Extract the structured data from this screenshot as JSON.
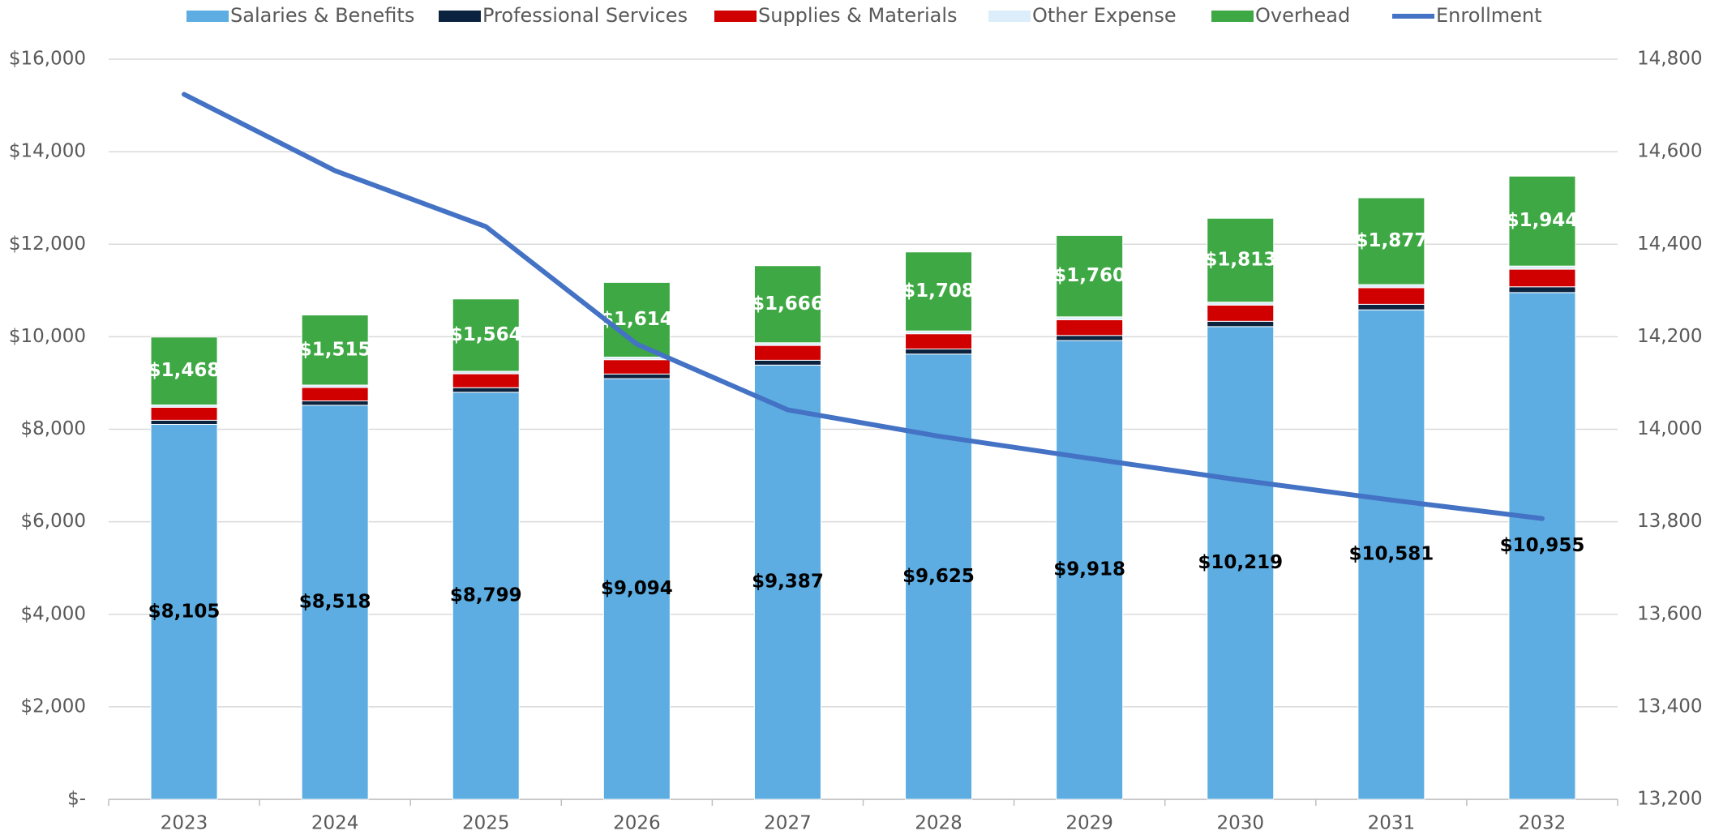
{
  "chart_data": {
    "type": "bar",
    "stacked": true,
    "categories": [
      "2023",
      "2024",
      "2025",
      "2026",
      "2027",
      "2028",
      "2029",
      "2030",
      "2031",
      "2032"
    ],
    "series": [
      {
        "name": "Salaries & Benefits",
        "color": "#5dade2",
        "values": [
          8105,
          8518,
          8799,
          9094,
          9387,
          9625,
          9918,
          10219,
          10581,
          10955
        ],
        "value_labels": [
          "$8,105",
          "$8,518",
          "$8,799",
          "$9,094",
          "$9,387",
          "$9,625",
          "$9,918",
          "$10,219",
          "$10,581",
          "$10,955"
        ],
        "label_color": "#000000"
      },
      {
        "name": "Professional Services",
        "color": "#0c2340",
        "values": [
          90,
          95,
          100,
          100,
          105,
          110,
          110,
          115,
          120,
          125
        ]
      },
      {
        "name": "Supplies & Materials",
        "color": "#d00000",
        "values": [
          280,
          290,
          300,
          310,
          320,
          330,
          340,
          350,
          360,
          380
        ]
      },
      {
        "name": "Other Expense",
        "color": "#dbeefa",
        "values": [
          50,
          52,
          54,
          56,
          58,
          60,
          62,
          64,
          66,
          68
        ]
      },
      {
        "name": "Overhead",
        "color": "#3ea844",
        "values": [
          1468,
          1515,
          1564,
          1614,
          1666,
          1708,
          1760,
          1813,
          1877,
          1944
        ],
        "value_labels": [
          "$1,468",
          "$1,515",
          "$1,564",
          "$1,614",
          "$1,666",
          "$1,708",
          "$1,760",
          "$1,813",
          "$1,877",
          "$1,944"
        ],
        "label_color": "#ffffff"
      },
      {
        "name": "Enrollment",
        "type": "line",
        "axis": "y2",
        "color": "#4472c4",
        "values": [
          14724,
          14559,
          14438,
          14184,
          14042,
          13985,
          13937,
          13890,
          13847,
          13807
        ]
      }
    ],
    "ylim": [
      0,
      16000
    ],
    "yticks": [
      {
        "value": 0,
        "label": "$-"
      },
      {
        "value": 2000,
        "label": "$2,000"
      },
      {
        "value": 4000,
        "label": "$4,000"
      },
      {
        "value": 6000,
        "label": "$6,000"
      },
      {
        "value": 8000,
        "label": "$8,000"
      },
      {
        "value": 10000,
        "label": "$10,000"
      },
      {
        "value": 12000,
        "label": "$12,000"
      },
      {
        "value": 14000,
        "label": "$14,000"
      },
      {
        "value": 16000,
        "label": "$16,000"
      }
    ],
    "y2lim": [
      13200,
      14800
    ],
    "y2ticks": [
      {
        "value": 13200,
        "label": "13,200"
      },
      {
        "value": 13400,
        "label": "13,400"
      },
      {
        "value": 13600,
        "label": "13,600"
      },
      {
        "value": 13800,
        "label": "13,800"
      },
      {
        "value": 14000,
        "label": "14,000"
      },
      {
        "value": 14200,
        "label": "14,200"
      },
      {
        "value": 14400,
        "label": "14,400"
      },
      {
        "value": 14600,
        "label": "14,600"
      },
      {
        "value": 14800,
        "label": "14,800"
      }
    ],
    "grid": true,
    "legend": "top"
  }
}
